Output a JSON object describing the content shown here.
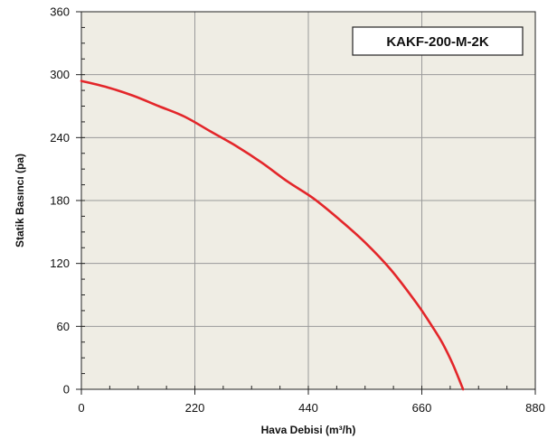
{
  "chart_data": {
    "type": "line",
    "title": "",
    "xlabel": "Hava Debisi (m³/h)",
    "ylabel": "Statik Basıncı (pa)",
    "xlim": [
      0,
      880
    ],
    "ylim": [
      0,
      360
    ],
    "x_ticks": [
      0,
      220,
      440,
      660,
      880
    ],
    "y_ticks": [
      0,
      60,
      120,
      180,
      240,
      300,
      360
    ],
    "grid": true,
    "plot_background": "#efede4",
    "legend_position": "top-right",
    "series": [
      {
        "name": "KAKF-200-M-2K",
        "color": "#e3262a",
        "x": [
          0,
          50,
          100,
          150,
          200,
          250,
          300,
          350,
          400,
          450,
          500,
          550,
          600,
          650,
          680,
          700,
          720,
          740
        ],
        "y": [
          294,
          288,
          280,
          270,
          260,
          246,
          232,
          216,
          198,
          182,
          162,
          140,
          114,
          82,
          60,
          44,
          24,
          0
        ]
      }
    ]
  }
}
